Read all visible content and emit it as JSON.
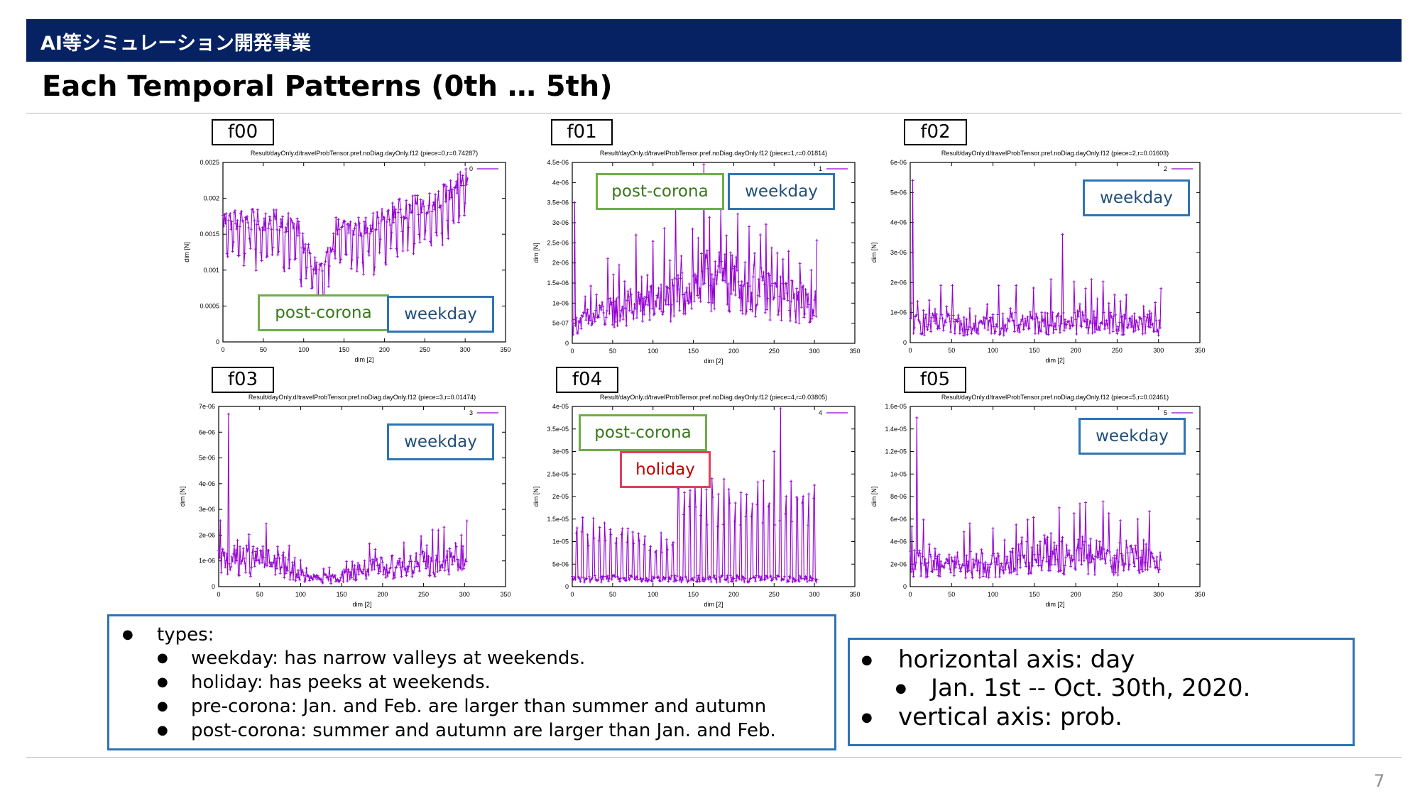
{
  "header": {
    "text": "AI等シミュレーション開発事業"
  },
  "title": "Each Temporal Patterns (0th … 5th)",
  "page_number": "7",
  "chart_data": [
    {
      "type": "line",
      "label": "f00",
      "title": "Result/dayOnly.d/travelProbTensor.pref.noDiag.dayOnly.f12 (piece=0,r=0.74287)",
      "legend": "0",
      "xlabel": "dim [2]",
      "ylabel": "dim [N]",
      "xlim": [
        0,
        350
      ],
      "ylim": [
        0,
        0.0025
      ],
      "yticks": [
        "0",
        "0.0005",
        "0.001",
        "0.0015",
        "0.002",
        "0.0025"
      ],
      "xticks": [
        "0",
        "50",
        "100",
        "150",
        "200",
        "250",
        "300",
        "350"
      ],
      "x_range": [
        0,
        303
      ],
      "anchors": [
        [
          0,
          0.0017
        ],
        [
          60,
          0.0017
        ],
        [
          90,
          0.00165
        ],
        [
          110,
          0.0011
        ],
        [
          125,
          0.001
        ],
        [
          140,
          0.0016
        ],
        [
          175,
          0.0016
        ],
        [
          220,
          0.00185
        ],
        [
          260,
          0.00195
        ],
        [
          303,
          0.0023
        ]
      ],
      "tags": [
        {
          "text": "post-corona",
          "color": "green"
        },
        {
          "text": "weekday",
          "color": "blue"
        }
      ]
    },
    {
      "type": "line",
      "label": "f01",
      "title": "Result/dayOnly.d/travelProbTensor.pref.noDiag.dayOnly.f12 (piece=1,r=0.01814)",
      "legend": "1",
      "xlabel": "dim [2]",
      "ylabel": "dim [N]",
      "xlim": [
        0,
        350
      ],
      "ylim": [
        0,
        4.5e-06
      ],
      "yticks": [
        "0",
        "5e-07",
        "1e-06",
        "1.5e-06",
        "2e-06",
        "2.5e-06",
        "3e-06",
        "3.5e-06",
        "4e-06",
        "4.5e-06"
      ],
      "xticks": [
        "0",
        "50",
        "100",
        "150",
        "200",
        "250",
        "300",
        "350"
      ],
      "x_range": [
        0,
        303
      ],
      "anchors": [
        [
          0,
          4.2e-07
        ],
        [
          60,
          8e-07
        ],
        [
          120,
          1e-06
        ],
        [
          170,
          1.5e-06
        ],
        [
          200,
          1.4e-06
        ],
        [
          230,
          1.2e-06
        ],
        [
          270,
          1e-06
        ],
        [
          303,
          9e-07
        ]
      ],
      "tags": [
        {
          "text": "post-corona",
          "color": "green"
        },
        {
          "text": "weekday",
          "color": "blue"
        }
      ]
    },
    {
      "type": "line",
      "label": "f02",
      "title": "Result/dayOnly.d/travelProbTensor.pref.noDiag.dayOnly.f12 (piece=2,r=0.01603)",
      "legend": "2",
      "xlabel": "dim [2]",
      "ylabel": "dim [N]",
      "xlim": [
        0,
        350
      ],
      "ylim": [
        0,
        6e-06
      ],
      "yticks": [
        "0",
        "1e-06",
        "2e-06",
        "3e-06",
        "4e-06",
        "5e-06",
        "6e-06"
      ],
      "xticks": [
        "0",
        "50",
        "100",
        "150",
        "200",
        "250",
        "300",
        "350"
      ],
      "x_range": [
        0,
        303
      ],
      "anchors": [
        [
          0,
          6e-07
        ],
        [
          100,
          6e-07
        ],
        [
          200,
          7e-07
        ],
        [
          303,
          6e-07
        ]
      ],
      "tags": [
        {
          "text": "weekday",
          "color": "blue"
        }
      ]
    },
    {
      "type": "line",
      "label": "f03",
      "title": "Result/dayOnly.d/travelProbTensor.pref.noDiag.dayOnly.f12 (piece=3,r=0.01474)",
      "legend": "3",
      "xlabel": "dim [2]",
      "ylabel": "dim [N]",
      "xlim": [
        0,
        350
      ],
      "ylim": [
        0,
        7e-06
      ],
      "yticks": [
        "0",
        "1e-06",
        "2e-06",
        "3e-06",
        "4e-06",
        "5e-06",
        "6e-06",
        "7e-06"
      ],
      "xticks": [
        "0",
        "50",
        "100",
        "150",
        "200",
        "250",
        "300",
        "350"
      ],
      "x_range": [
        0,
        303
      ],
      "anchors": [
        [
          0,
          1e-06
        ],
        [
          60,
          1e-06
        ],
        [
          90,
          6e-07
        ],
        [
          110,
          3e-07
        ],
        [
          140,
          3e-07
        ],
        [
          170,
          6e-07
        ],
        [
          220,
          8e-07
        ],
        [
          260,
          9e-07
        ],
        [
          303,
          1e-06
        ]
      ],
      "tags": [
        {
          "text": "weekday",
          "color": "blue"
        }
      ]
    },
    {
      "type": "line",
      "label": "f04",
      "title": "Result/dayOnly.d/travelProbTensor.pref.noDiag.dayOnly.f12 (piece=4,r=0.03805)",
      "legend": "4",
      "xlabel": "dim [2]",
      "ylabel": "dim [N]",
      "xlim": [
        0,
        350
      ],
      "ylim": [
        0,
        4e-05
      ],
      "yticks": [
        "0",
        "5e-06",
        "1e-05",
        "1.5e-05",
        "2e-05",
        "2.5e-05",
        "3e-05",
        "3.5e-05",
        "4e-05"
      ],
      "xticks": [
        "0",
        "50",
        "100",
        "150",
        "200",
        "250",
        "300",
        "350"
      ],
      "x_range": [
        0,
        303
      ],
      "anchors": [
        [
          0,
          1e-06
        ],
        [
          303,
          1e-06
        ]
      ],
      "tags": [
        {
          "text": "post-corona",
          "color": "green"
        },
        {
          "text": "holiday",
          "color": "red"
        }
      ]
    },
    {
      "type": "line",
      "label": "f05",
      "title": "Result/dayOnly.d/travelProbTensor.pref.noDiag.dayOnly.f12 (piece=5,r=0.02461)",
      "legend": "5",
      "xlabel": "dim [2]",
      "ylabel": "dim [N]",
      "xlim": [
        0,
        350
      ],
      "ylim": [
        0,
        1.6e-05
      ],
      "yticks": [
        "0",
        "2e-06",
        "4e-06",
        "6e-06",
        "8e-06",
        "1e-05",
        "1.2e-05",
        "1.4e-05",
        "1.6e-05"
      ],
      "xticks": [
        "0",
        "50",
        "100",
        "150",
        "200",
        "250",
        "300",
        "350"
      ],
      "x_range": [
        0,
        303
      ],
      "anchors": [
        [
          0,
          2e-06
        ],
        [
          100,
          1.8e-06
        ],
        [
          160,
          2.8e-06
        ],
        [
          303,
          2.2e-06
        ]
      ],
      "tags": [
        {
          "text": "weekday",
          "color": "blue"
        }
      ]
    }
  ],
  "notes_left": {
    "types_label": "types:",
    "items": [
      "weekday: has narrow valleys at weekends.",
      "holiday: has peeks at weekends.",
      "pre-corona: Jan. and Feb. are larger than summer and autumn",
      "post-corona: summer and autumn are larger than Jan. and Feb."
    ]
  },
  "notes_right": {
    "horizontal": "horizontal axis: day",
    "date_range": "Jan. 1st -- Oct. 30th, 2020.",
    "vertical": "vertical axis: prob."
  },
  "colors": {
    "header_bg": "#062263",
    "line": "#9400d3",
    "tag_green": "#70ad47",
    "tag_blue": "#2e74b5",
    "tag_red": "#e0415a"
  }
}
